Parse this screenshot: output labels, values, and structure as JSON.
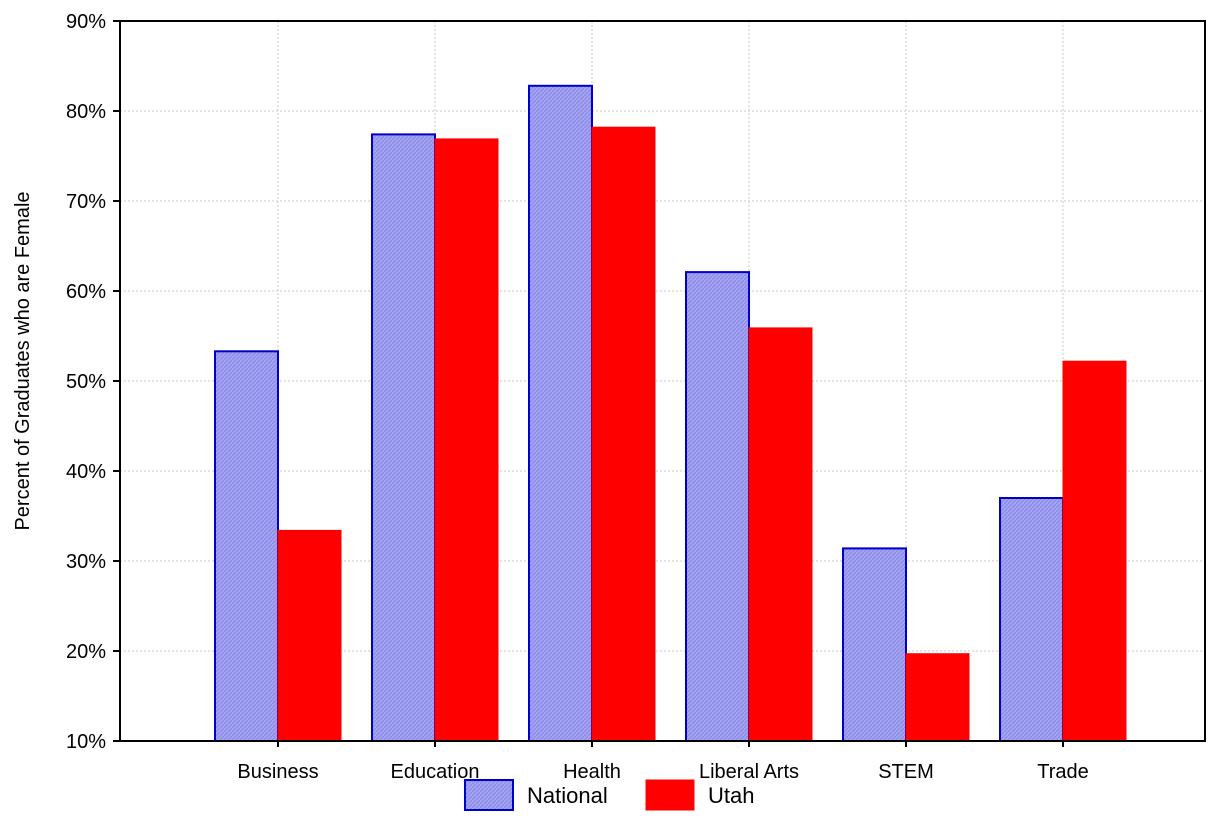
{
  "chart_data": {
    "type": "bar",
    "title": "",
    "xlabel": "",
    "ylabel": "Percent of Graduates who are Female",
    "categories": [
      "Business",
      "Education",
      "Health",
      "Liberal Arts",
      "STEM",
      "Trade"
    ],
    "series": [
      {
        "name": "National",
        "values": [
          53.3,
          77.4,
          82.8,
          62.1,
          31.4,
          37.0
        ],
        "color": "#9b9bf0",
        "edge_color": "#0000cc"
      },
      {
        "name": "Utah",
        "values": [
          33.4,
          76.9,
          78.2,
          55.9,
          19.7,
          52.2
        ],
        "color": "#ff0000",
        "edge_color": "#ff0000"
      }
    ],
    "ylim": [
      10,
      90
    ],
    "yticks": [
      10,
      20,
      30,
      40,
      50,
      60,
      70,
      80,
      90
    ],
    "ytick_labels": [
      "10%",
      "20%",
      "30%",
      "40%",
      "50%",
      "60%",
      "70%",
      "80%",
      "90%"
    ],
    "grid": true,
    "legend_position": "bottom-center"
  }
}
